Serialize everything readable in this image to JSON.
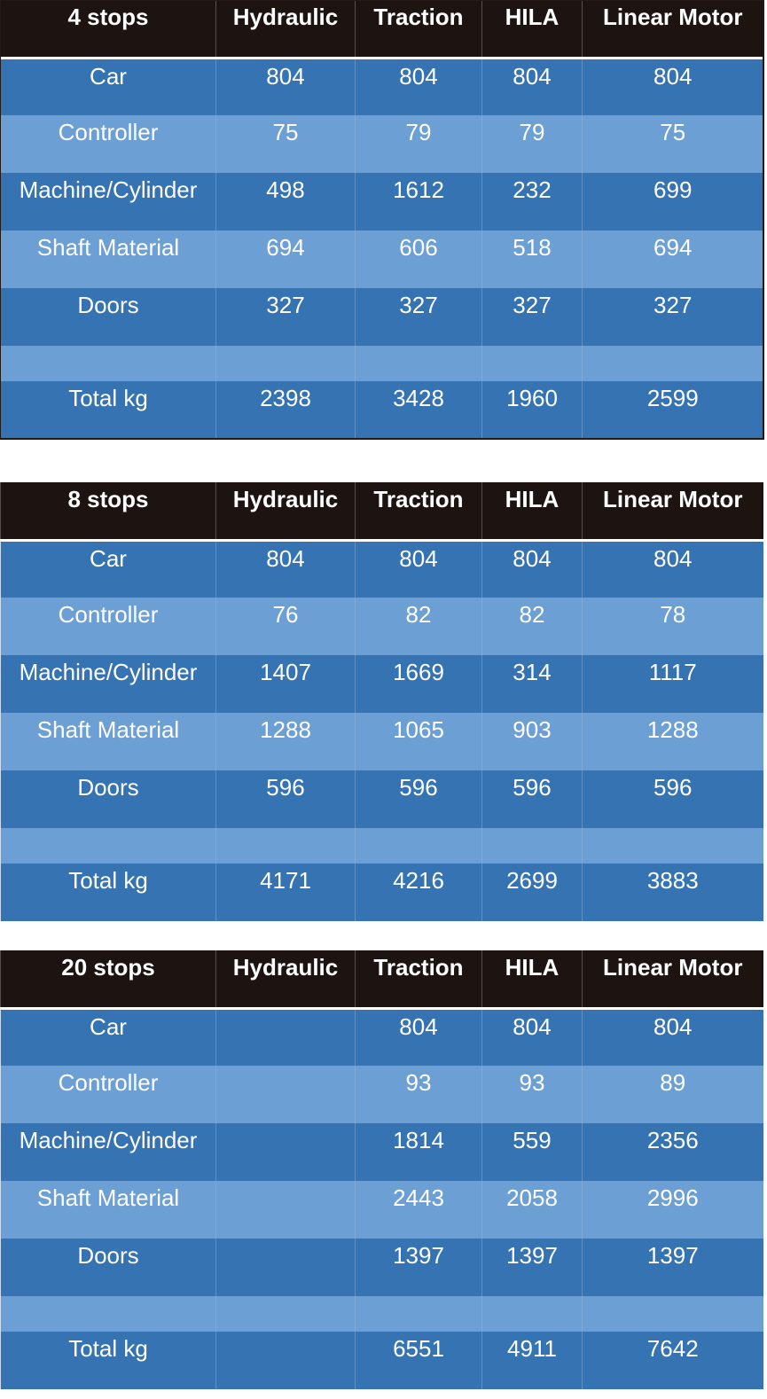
{
  "columns": [
    "Hydraulic",
    "Traction",
    "HILA",
    "Linear Motor"
  ],
  "tables": [
    {
      "title": "4 stops",
      "rows": [
        {
          "label": "Car",
          "values": [
            "804",
            "804",
            "804",
            "804"
          ]
        },
        {
          "label": "Controller",
          "values": [
            "75",
            "79",
            "79",
            "75"
          ]
        },
        {
          "label": "Machine/Cylinder",
          "values": [
            "498",
            "1612",
            "232",
            "699"
          ]
        },
        {
          "label": "Shaft Material",
          "values": [
            "694",
            "606",
            "518",
            "694"
          ]
        },
        {
          "label": "Doors",
          "values": [
            "327",
            "327",
            "327",
            "327"
          ]
        },
        {
          "label": "",
          "values": [
            "",
            "",
            "",
            ""
          ]
        },
        {
          "label": "Total kg",
          "values": [
            "2398",
            "3428",
            "1960",
            "2599"
          ]
        }
      ]
    },
    {
      "title": "8 stops",
      "rows": [
        {
          "label": "Car",
          "values": [
            "804",
            "804",
            "804",
            "804"
          ]
        },
        {
          "label": "Controller",
          "values": [
            "76",
            "82",
            "82",
            "78"
          ]
        },
        {
          "label": "Machine/Cylinder",
          "values": [
            "1407",
            "1669",
            "314",
            "1117"
          ]
        },
        {
          "label": "Shaft Material",
          "values": [
            "1288",
            "1065",
            "903",
            "1288"
          ]
        },
        {
          "label": "Doors",
          "values": [
            "596",
            "596",
            "596",
            "596"
          ]
        },
        {
          "label": "",
          "values": [
            "",
            "",
            "",
            ""
          ]
        },
        {
          "label": "Total kg",
          "values": [
            "4171",
            "4216",
            "2699",
            "3883"
          ]
        }
      ]
    },
    {
      "title": "20 stops",
      "rows": [
        {
          "label": "Car",
          "values": [
            "",
            "804",
            "804",
            "804"
          ]
        },
        {
          "label": "Controller",
          "values": [
            "",
            "93",
            "93",
            "89"
          ]
        },
        {
          "label": "Machine/Cylinder",
          "values": [
            "",
            "1814",
            "559",
            "2356"
          ]
        },
        {
          "label": "Shaft Material",
          "values": [
            "",
            "2443",
            "2058",
            "2996"
          ]
        },
        {
          "label": "Doors",
          "values": [
            "",
            "1397",
            "1397",
            "1397"
          ]
        },
        {
          "label": "",
          "values": [
            "",
            "",
            "",
            ""
          ]
        },
        {
          "label": "Total kg",
          "values": [
            "",
            "6551",
            "4911",
            "7642"
          ]
        }
      ]
    }
  ],
  "colors": {
    "header": "#1d1411",
    "row_dark": "#3673b2",
    "row_light": "#6c9fd3"
  }
}
